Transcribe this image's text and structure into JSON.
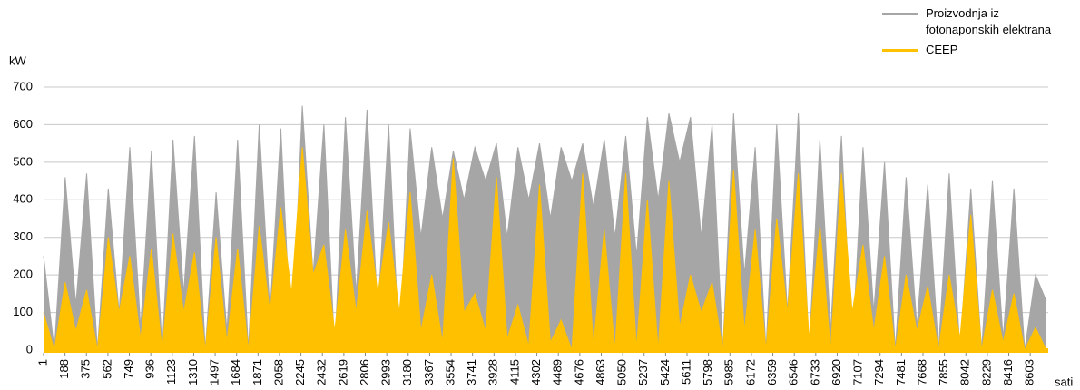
{
  "chart_data": {
    "type": "area",
    "y_label": "kW",
    "x_label": "sati",
    "x": [
      1,
      95,
      189,
      283,
      377,
      471,
      565,
      659,
      753,
      847,
      941,
      1035,
      1129,
      1223,
      1317,
      1411,
      1505,
      1599,
      1693,
      1787,
      1881,
      1975,
      2069,
      2163,
      2257,
      2351,
      2445,
      2539,
      2633,
      2727,
      2821,
      2915,
      3009,
      3103,
      3197,
      3291,
      3385,
      3479,
      3573,
      3667,
      3761,
      3855,
      3949,
      4043,
      4137,
      4231,
      4325,
      4419,
      4513,
      4607,
      4701,
      4795,
      4889,
      4983,
      5077,
      5171,
      5265,
      5359,
      5453,
      5547,
      5641,
      5735,
      5829,
      5923,
      6017,
      6111,
      6205,
      6299,
      6393,
      6487,
      6581,
      6675,
      6769,
      6863,
      6957,
      7051,
      7145,
      7239,
      7333,
      7427,
      7521,
      7615,
      7709,
      7803,
      7897,
      7991,
      8085,
      8179,
      8273,
      8367,
      8461,
      8555,
      8649,
      8743
    ],
    "series": [
      {
        "name": "Proizvodnja iz fotonaponskih elektrana",
        "color": "#a6a6a6",
        "values": [
          250,
          0,
          460,
          120,
          470,
          0,
          430,
          100,
          540,
          60,
          530,
          0,
          560,
          150,
          570,
          0,
          420,
          50,
          560,
          0,
          600,
          100,
          590,
          0,
          650,
          200,
          600,
          0,
          620,
          150,
          640,
          100,
          600,
          0,
          590,
          300,
          540,
          350,
          530,
          400,
          540,
          450,
          550,
          300,
          540,
          400,
          550,
          350,
          540,
          450,
          550,
          380,
          560,
          300,
          570,
          250,
          620,
          400,
          630,
          500,
          620,
          300,
          600,
          0,
          630,
          200,
          540,
          0,
          600,
          100,
          630,
          0,
          560,
          50,
          570,
          0,
          540,
          100,
          500,
          0,
          460,
          60,
          440,
          0,
          470,
          0,
          430,
          0,
          450,
          30,
          430,
          0,
          200,
          130
        ]
      },
      {
        "name": "CEEP",
        "color": "#ffc000",
        "values": [
          100,
          0,
          180,
          50,
          160,
          0,
          300,
          100,
          250,
          30,
          270,
          0,
          310,
          100,
          260,
          0,
          300,
          20,
          270,
          0,
          330,
          100,
          380,
          150,
          540,
          200,
          280,
          50,
          320,
          100,
          370,
          150,
          340,
          100,
          420,
          50,
          200,
          20,
          510,
          100,
          150,
          50,
          460,
          30,
          120,
          10,
          440,
          20,
          80,
          0,
          470,
          10,
          320,
          0,
          470,
          5,
          400,
          0,
          450,
          60,
          200,
          100,
          180,
          0,
          480,
          50,
          320,
          0,
          350,
          100,
          470,
          30,
          330,
          0,
          470,
          100,
          280,
          50,
          250,
          0,
          200,
          50,
          170,
          0,
          200,
          30,
          360,
          0,
          160,
          20,
          150,
          0,
          60,
          0
        ]
      }
    ],
    "xlim": [
      1,
      8760
    ],
    "ylim": [
      0,
      700
    ],
    "yticks": [
      0,
      100,
      200,
      300,
      400,
      500,
      600,
      700
    ],
    "xticks": [
      1,
      188,
      375,
      562,
      749,
      936,
      1123,
      1310,
      1497,
      1684,
      1871,
      2058,
      2245,
      2432,
      2619,
      2806,
      2993,
      3180,
      3367,
      3554,
      3741,
      3928,
      4115,
      4302,
      4489,
      4676,
      4863,
      5050,
      5237,
      5424,
      5611,
      5798,
      5985,
      6172,
      6359,
      6546,
      6733,
      6920,
      7107,
      7294,
      7481,
      7668,
      7855,
      8042,
      8229,
      8416,
      8603
    ],
    "grid": true
  }
}
